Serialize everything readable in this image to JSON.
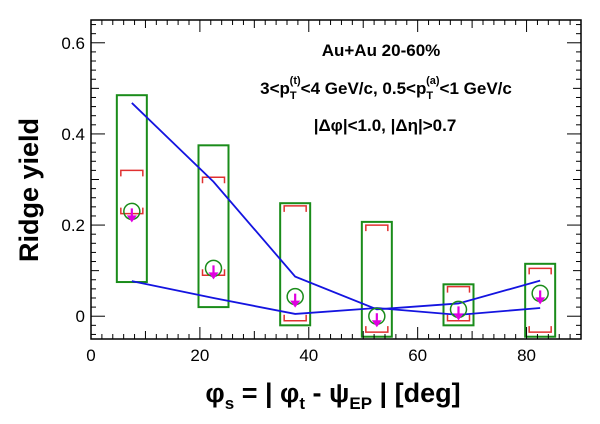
{
  "chart_data": {
    "type": "scatter",
    "title": "",
    "xlabel": {
      "main": "φ",
      "sub": "s",
      "mid": " = | φ",
      "sub2": "t",
      "mid2": " - ψ",
      "sub3": "EP",
      "tail": " |  [deg]"
    },
    "ylabel": "Ridge yield",
    "xlim": [
      0,
      90
    ],
    "ylim": [
      -0.05,
      0.65
    ],
    "x_ticks": [
      0,
      20,
      40,
      60,
      80
    ],
    "y_ticks": [
      0,
      0.2,
      0.4,
      0.6
    ],
    "x_tick_labels": [
      "0",
      "20",
      "40",
      "60",
      "80"
    ],
    "y_tick_labels": [
      "0",
      "0.2",
      "0.4",
      "0.6"
    ],
    "annotations": {
      "line1": "Au+Au 20-60%",
      "line2": {
        "a": "3<p",
        "b_sub": "T",
        "b_sup": "(t)",
        "c": "<4 GeV/c, 0.5<p",
        "d_sub": "T",
        "d_sup": "(a)",
        "e": "<1 GeV/c"
      },
      "line3": "|Δφ|<1.0, |Δη|>0.7"
    },
    "points": [
      {
        "x": 7.5,
        "y": 0.23,
        "sys_box": [
          0.075,
          0.485
        ],
        "bracket": [
          0.225,
          0.32
        ]
      },
      {
        "x": 22.5,
        "y": 0.105,
        "sys_box": [
          0.02,
          0.375
        ],
        "bracket": [
          0.09,
          0.305
        ]
      },
      {
        "x": 37.5,
        "y": 0.043,
        "sys_box": [
          -0.02,
          0.248
        ],
        "bracket": [
          -0.01,
          0.242
        ]
      },
      {
        "x": 52.5,
        "y": 0.0,
        "sys_box": [
          -0.045,
          0.207
        ],
        "bracket": [
          -0.035,
          0.2
        ]
      },
      {
        "x": 67.5,
        "y": 0.015,
        "sys_box": [
          -0.02,
          0.07
        ],
        "bracket": [
          -0.01,
          0.065
        ]
      },
      {
        "x": 82.5,
        "y": 0.05,
        "sys_box": [
          -0.045,
          0.115
        ],
        "bracket": [
          -0.035,
          0.105
        ]
      }
    ],
    "series": [
      {
        "x": [
          7.5,
          22.5,
          37.5,
          52.5,
          67.5,
          82.5
        ],
        "values": [
          0.468,
          0.295,
          0.087,
          0.015,
          0.028,
          0.078
        ]
      },
      {
        "x": [
          7.5,
          22.5,
          37.5,
          52.5,
          67.5,
          82.5
        ],
        "values": [
          0.077,
          0.04,
          0.005,
          0.018,
          0.003,
          0.018
        ]
      }
    ],
    "colors": {
      "sys_box": "#1a8c1a",
      "bracket": "#e03030",
      "marker": "#1a8c1a",
      "arrow": "#e000e0",
      "band": "#1414e0",
      "axis": "#000000"
    },
    "grid": false,
    "legend": "none"
  }
}
